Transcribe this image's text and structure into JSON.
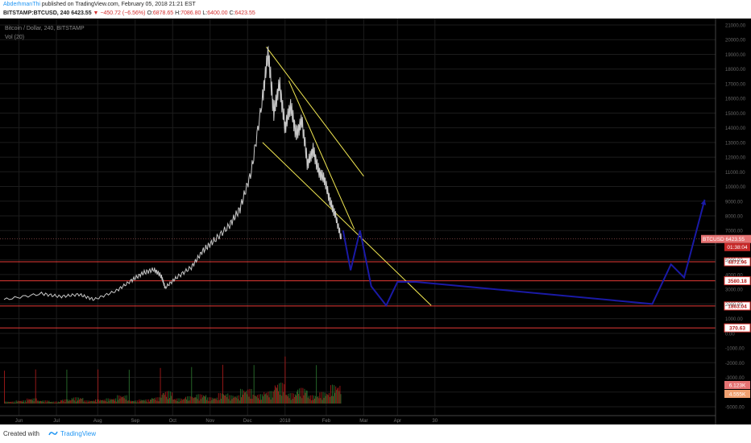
{
  "header": {
    "author": "AbderhmanThi",
    "published_text": "published on TradingView.com, February 05, 2018 21:21 EST",
    "symbol": "BITSTAMP:BTCUSD, 240",
    "last": "6423.55",
    "change_arrow": "▼",
    "change": "−450.72 (−6.56%)",
    "open_label": "O:",
    "open": "6878.65",
    "high_label": "H:",
    "high": "7086.80",
    "low_label": "L:",
    "low": "6400.00",
    "close_label": "C:",
    "close": "6423.55"
  },
  "chart_data": {
    "type": "line",
    "title": "Bitcoin / Dollar, 240, BITSTAMP",
    "volume_label": "Vol (20)",
    "x_ticks": [
      "Jun",
      "Jul",
      "Aug",
      "Sep",
      "Oct",
      "Nov",
      "Dec",
      "2018",
      "Feb",
      "Mar",
      "Apr",
      "30"
    ],
    "y_ticks": [
      "21000.00",
      "20000.00",
      "19000.00",
      "18000.00",
      "17000.00",
      "16000.00",
      "15000.00",
      "14000.00",
      "13000.00",
      "12000.00",
      "11000.00",
      "10000.00",
      "9000.00",
      "8000.00",
      "7000.00",
      "6000.00",
      "5000.00",
      "4000.00",
      "3000.00",
      "2000.00",
      "1000.00",
      "0.00",
      "-1000.00",
      "-2000.00",
      "-3000.00",
      "-4000.00",
      "-5000.00"
    ],
    "price_label": {
      "text": "BTCUSD",
      "value": "6423.55",
      "countdown": "01:38:04"
    },
    "horizontal_levels": [
      4872.96,
      3580.18,
      1863.04,
      370.63
    ],
    "level_labels": [
      "4872.96",
      "3580.18",
      "1863.04",
      "370.63"
    ],
    "volume_labels": [
      "6.123K",
      "4.555K"
    ],
    "price_series": [
      {
        "t": 0,
        "p": 2300
      },
      {
        "t": 1,
        "p": 2700
      },
      {
        "t": 1.5,
        "p": 2500
      },
      {
        "t": 2,
        "p": 2650
      },
      {
        "t": 2.4,
        "p": 2300
      },
      {
        "t": 3,
        "p": 2900
      },
      {
        "t": 3.4,
        "p": 3600
      },
      {
        "t": 3.7,
        "p": 4100
      },
      {
        "t": 4,
        "p": 4350
      },
      {
        "t": 4.2,
        "p": 3900
      },
      {
        "t": 4.3,
        "p": 3100
      },
      {
        "t": 4.6,
        "p": 3800
      },
      {
        "t": 5,
        "p": 4500
      },
      {
        "t": 5.3,
        "p": 5600
      },
      {
        "t": 5.6,
        "p": 6300
      },
      {
        "t": 6,
        "p": 7300
      },
      {
        "t": 6.3,
        "p": 8500
      },
      {
        "t": 6.6,
        "p": 11000
      },
      {
        "t": 6.9,
        "p": 16000
      },
      {
        "t": 7.05,
        "p": 19200
      },
      {
        "t": 7.2,
        "p": 15000
      },
      {
        "t": 7.35,
        "p": 17000
      },
      {
        "t": 7.5,
        "p": 14000
      },
      {
        "t": 7.65,
        "p": 15500
      },
      {
        "t": 7.8,
        "p": 13500
      },
      {
        "t": 7.95,
        "p": 14500
      },
      {
        "t": 8.1,
        "p": 11500
      },
      {
        "t": 8.25,
        "p": 12500
      },
      {
        "t": 8.4,
        "p": 11000
      },
      {
        "t": 8.55,
        "p": 10500
      },
      {
        "t": 8.7,
        "p": 9000
      },
      {
        "t": 8.85,
        "p": 8000
      },
      {
        "t": 9,
        "p": 6423.55
      }
    ],
    "projection": [
      {
        "t": 9.05,
        "p": 7000
      },
      {
        "t": 9.25,
        "p": 4300
      },
      {
        "t": 9.5,
        "p": 7000
      },
      {
        "t": 9.8,
        "p": 3200
      },
      {
        "t": 10.2,
        "p": 1900
      },
      {
        "t": 10.5,
        "p": 3500
      },
      {
        "t": 11,
        "p": 3500
      },
      {
        "t": 17.3,
        "p": 2000
      },
      {
        "t": 17.8,
        "p": 4700
      },
      {
        "t": 18.15,
        "p": 3800
      },
      {
        "t": 18.7,
        "p": 9100
      }
    ],
    "trendlines": [
      {
        "t1": 7.0,
        "p1": 19500,
        "t2": 9.6,
        "p2": 10700
      },
      {
        "t1": 7.6,
        "p1": 17200,
        "t2": 9.35,
        "p2": 7100
      },
      {
        "t1": 6.9,
        "p1": 13000,
        "t2": 11.4,
        "p2": 1900
      }
    ],
    "volume": [
      2,
      3,
      5,
      3,
      2,
      4,
      6,
      3,
      4,
      5,
      8,
      3,
      4,
      6,
      12,
      5,
      7,
      9,
      6,
      10,
      8,
      14,
      9,
      12,
      20,
      10,
      15,
      8,
      11,
      18
    ]
  },
  "footer": {
    "created_with": "Created with",
    "brand": "TradingView"
  },
  "colors": {
    "background": "#000000",
    "grid": "#1c1c1c",
    "level": "#e53935",
    "trendline": "#f2e852",
    "projection": "#1a1aa6",
    "price": "#c8c8c8",
    "last_price": "#e57373"
  }
}
